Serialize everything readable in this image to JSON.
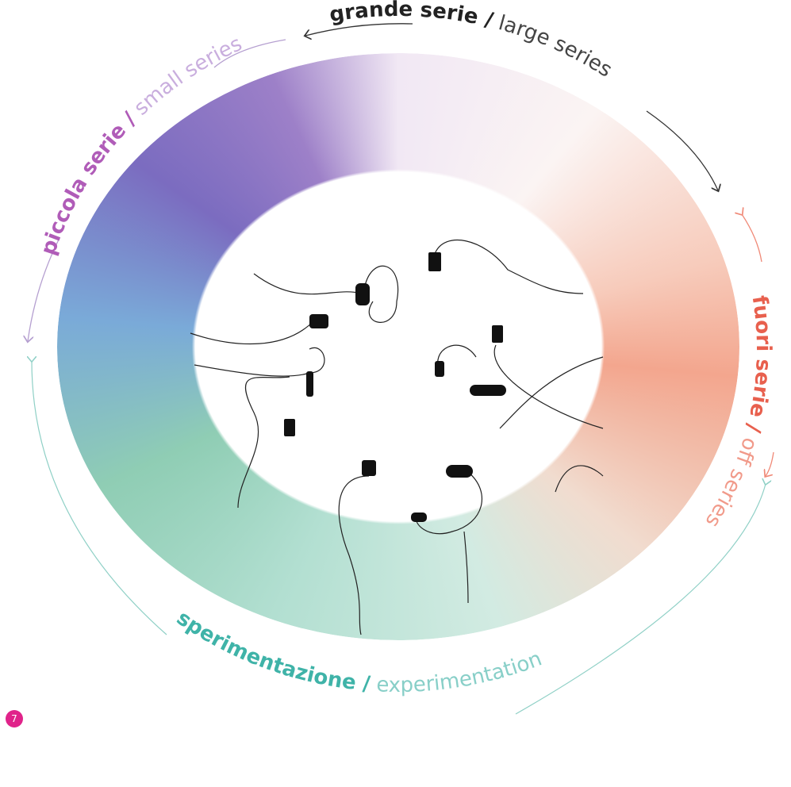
{
  "sections": [
    {
      "title": "grande serie /",
      "subtitle": "large series"
    },
    {
      "title": "fuori serie /",
      "subtitle": "off series"
    },
    {
      "title": "sperimentazione /",
      "subtitle": "experimentation"
    },
    {
      "title": "piccola serie /",
      "subtitle": "small series"
    }
  ],
  "page_number": "7"
}
